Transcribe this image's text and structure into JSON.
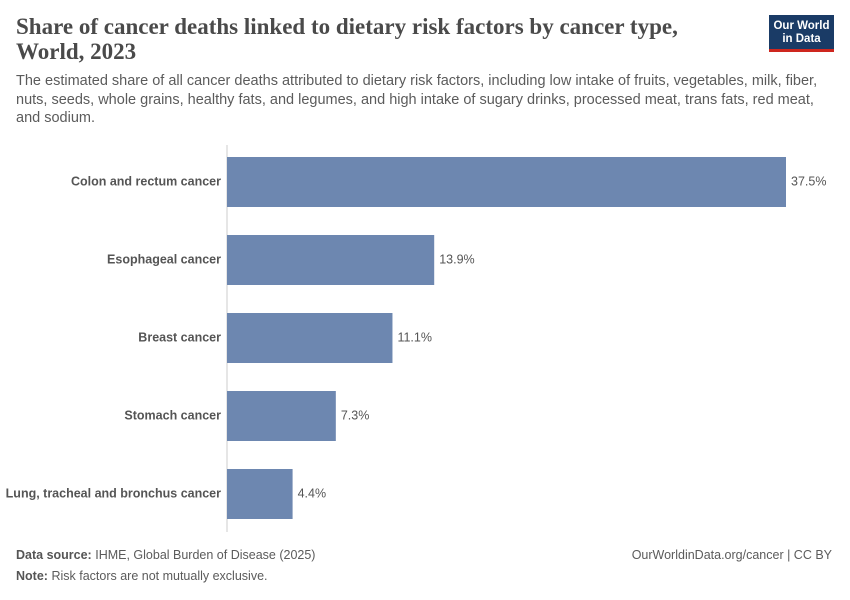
{
  "chart_data": {
    "type": "bar",
    "orientation": "horizontal",
    "title": "Share of cancer deaths linked to dietary risk factors by cancer type, World, 2023",
    "subtitle": "The estimated share of all cancer deaths attributed to dietary risk factors, including low intake of fruits, vegetables, milk, fiber, nuts, seeds, whole grains, healthy fats, and legumes, and high intake of sugary drinks, processed meat, trans fats, red meat, and sodium.",
    "categories": [
      "Colon and rectum cancer",
      "Esophageal cancer",
      "Breast cancer",
      "Stomach cancer",
      "Lung, tracheal and bronchus cancer"
    ],
    "values": [
      37.5,
      13.9,
      11.1,
      7.3,
      4.4
    ],
    "value_labels": [
      "37.5%",
      "13.9%",
      "11.1%",
      "7.3%",
      "4.4%"
    ],
    "color": "#6d87b0"
  },
  "logo": [
    "Our World",
    "in Data"
  ],
  "footer": {
    "source_label": "Data source:",
    "source": "IHME, Global Burden of Disease (2025)",
    "url": "OurWorldinData.org/cancer | CC BY",
    "note_label": "Note:",
    "note": "Risk factors are not mutually exclusive."
  }
}
